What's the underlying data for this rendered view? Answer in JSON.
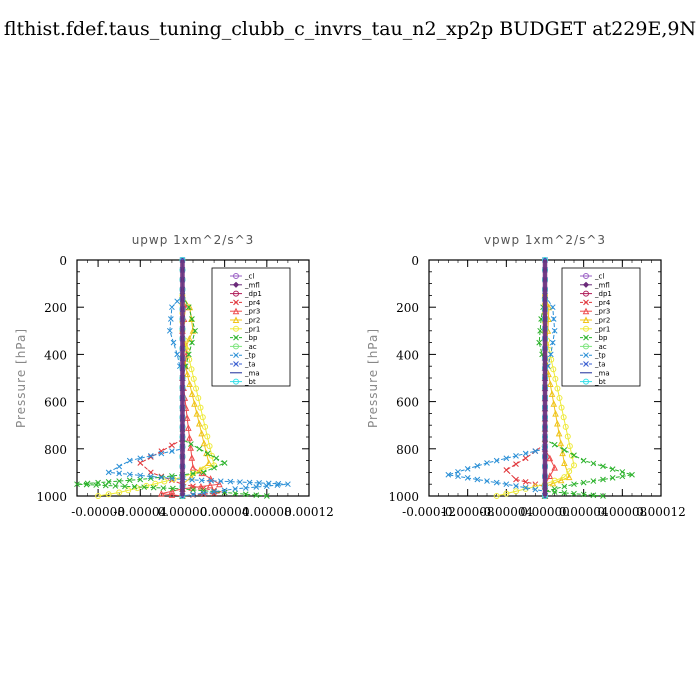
{
  "title": "flthist.fdef.taus_tuning_clubb_c_invrs_tau_n2_xp2p  BUDGET at229E,9N",
  "chart_data": [
    {
      "type": "line",
      "title": "upwp   1xm^2/s^3",
      "ylabel": "Pressure [hPa]",
      "xlabel": "",
      "xlim": [
        -0.0001,
        0.00012
      ],
      "ylim": [
        1000,
        0
      ],
      "xticks": [
        "-0.00008",
        "-0.00004",
        "0.00000",
        "0.00004",
        "0.00008",
        "0.00012"
      ],
      "xtick_values": [
        -8e-05,
        -4e-05,
        0,
        4e-05,
        8e-05,
        0.00012
      ],
      "yticks": [
        "0",
        "200",
        "400",
        "600",
        "800",
        "1000"
      ],
      "ytick_values": [
        0,
        200,
        400,
        600,
        800,
        1000
      ],
      "legend_position": "top-right",
      "series": [
        {
          "name": "_cl",
          "color": "#9a5fc4",
          "marker": "circle",
          "points": [
            [
              0,
              0
            ],
            [
              0,
              1000
            ]
          ]
        },
        {
          "name": "_mfl",
          "color": "#6b2a7a",
          "marker": "diamond",
          "points": [
            [
              0,
              0
            ],
            [
              0,
              1000
            ]
          ]
        },
        {
          "name": "_dp1",
          "color": "#b01e5a",
          "marker": "circle",
          "points": [
            [
              0,
              0
            ],
            [
              0,
              1000
            ]
          ]
        },
        {
          "name": "_pr4",
          "color": "#e0353a",
          "marker": "cross",
          "points": [
            [
              0,
              760
            ],
            [
              -2e-05,
              810
            ],
            [
              -4e-05,
              860
            ],
            [
              -3e-05,
              900
            ],
            [
              0,
              950
            ],
            [
              4e-05,
              985
            ],
            [
              0,
              1000
            ]
          ]
        },
        {
          "name": "_pr3",
          "color": "#ee4b4b",
          "marker": "triangle",
          "points": [
            [
              0,
              150
            ],
            [
              3e-06,
              200
            ],
            [
              0,
              300
            ],
            [
              4e-06,
              400
            ],
            [
              0,
              500
            ],
            [
              1e-05,
              880
            ],
            [
              3.5e-05,
              950
            ],
            [
              0,
              970
            ],
            [
              -2e-05,
              990
            ],
            [
              0,
              1000
            ]
          ]
        },
        {
          "name": "_pr2",
          "color": "#f0c419",
          "marker": "triangle",
          "points": [
            [
              0,
              150
            ],
            [
              7e-06,
              200
            ],
            [
              1e-05,
              300
            ],
            [
              0,
              400
            ],
            [
              2.5e-05,
              860
            ],
            [
              0,
              950
            ],
            [
              0,
              1000
            ]
          ]
        },
        {
          "name": "_pr1",
          "color": "#eeea3a",
          "marker": "circle",
          "points": [
            [
              0,
              150
            ],
            [
              0,
              300
            ],
            [
              3e-05,
              870
            ],
            [
              0,
              920
            ],
            [
              -6e-05,
              985
            ],
            [
              -8e-05,
              1000
            ]
          ]
        },
        {
          "name": "_bp",
          "color": "#2ab22a",
          "marker": "cross",
          "points": [
            [
              0,
              150
            ],
            [
              6e-06,
              200
            ],
            [
              1.2e-05,
              300
            ],
            [
              6e-06,
              400
            ],
            [
              0,
              500
            ],
            [
              0,
              760
            ],
            [
              4e-05,
              860
            ],
            [
              2e-05,
              900
            ],
            [
              -4e-05,
              930
            ],
            [
              -0.0001,
              950
            ],
            [
              0,
              970
            ],
            [
              8e-05,
              1000
            ]
          ]
        },
        {
          "name": "_ac",
          "color": "#7ee57e",
          "marker": "circle",
          "points": [
            [
              0,
              0
            ],
            [
              0,
              1000
            ]
          ]
        },
        {
          "name": "_tp",
          "color": "#2a8fd6",
          "marker": "cross",
          "points": [
            [
              0,
              150
            ],
            [
              -1e-05,
              200
            ],
            [
              -1.2e-05,
              300
            ],
            [
              -5e-06,
              400
            ],
            [
              0,
              500
            ],
            [
              0,
              800
            ],
            [
              -5e-05,
              850
            ],
            [
              -7e-05,
              900
            ],
            [
              0,
              930
            ],
            [
              0.0001,
              950
            ],
            [
              5e-05,
              970
            ],
            [
              0,
              1000
            ]
          ]
        },
        {
          "name": "_ta",
          "color": "#3a5fd0",
          "marker": "cross",
          "points": [
            [
              0,
              0
            ],
            [
              0,
              1000
            ]
          ]
        },
        {
          "name": "_ma",
          "color": "#1a2a9a",
          "marker": "none",
          "points": [
            [
              0,
              0
            ],
            [
              0,
              1000
            ]
          ]
        },
        {
          "name": "_bt",
          "color": "#35dfe8",
          "marker": "circle",
          "points": [
            [
              0,
              0
            ],
            [
              0,
              1000
            ]
          ]
        }
      ]
    },
    {
      "type": "line",
      "title": "vpwp   1xm^2/s^3",
      "ylabel": "Pressure [hPa]",
      "xlabel": "",
      "xlim": [
        -0.00012,
        0.00012
      ],
      "ylim": [
        1000,
        0
      ],
      "xticks": [
        "-0.00012",
        "-0.00008",
        "-0.00004",
        "0.00000",
        "0.00004",
        "0.00008",
        "0.00012"
      ],
      "xtick_values": [
        -0.00012,
        -8e-05,
        -4e-05,
        0,
        4e-05,
        8e-05,
        0.00012
      ],
      "yticks": [
        "0",
        "200",
        "400",
        "600",
        "800",
        "1000"
      ],
      "ytick_values": [
        0,
        200,
        400,
        600,
        800,
        1000
      ],
      "legend_position": "top-right",
      "series": [
        {
          "name": "_cl",
          "color": "#9a5fc4",
          "marker": "circle",
          "points": [
            [
              0,
              0
            ],
            [
              0,
              1000
            ]
          ]
        },
        {
          "name": "_mfl",
          "color": "#6b2a7a",
          "marker": "diamond",
          "points": [
            [
              0,
              0
            ],
            [
              0,
              1000
            ]
          ]
        },
        {
          "name": "_dp1",
          "color": "#b01e5a",
          "marker": "circle",
          "points": [
            [
              0,
              0
            ],
            [
              0,
              1000
            ]
          ]
        },
        {
          "name": "_pr4",
          "color": "#e0353a",
          "marker": "cross",
          "points": [
            [
              0,
              780
            ],
            [
              -2e-05,
              840
            ],
            [
              -4e-05,
              890
            ],
            [
              -3e-05,
              930
            ],
            [
              0,
              960
            ],
            [
              0,
              1000
            ]
          ]
        },
        {
          "name": "_pr3",
          "color": "#ee4b4b",
          "marker": "triangle",
          "points": [
            [
              0,
              150
            ],
            [
              0,
              500
            ],
            [
              0,
              800
            ],
            [
              1e-05,
              880
            ],
            [
              0,
              950
            ],
            [
              0,
              1000
            ]
          ]
        },
        {
          "name": "_pr2",
          "color": "#f0c419",
          "marker": "triangle",
          "points": [
            [
              0,
              150
            ],
            [
              4e-06,
              200
            ],
            [
              3e-06,
              300
            ],
            [
              0,
              400
            ],
            [
              2e-05,
              860
            ],
            [
              2.5e-05,
              920
            ],
            [
              0,
              960
            ],
            [
              0,
              1000
            ]
          ]
        },
        {
          "name": "_pr1",
          "color": "#eeea3a",
          "marker": "circle",
          "points": [
            [
              0,
              150
            ],
            [
              0,
              300
            ],
            [
              3e-05,
              870
            ],
            [
              2e-05,
              920
            ],
            [
              0,
              950
            ],
            [
              -4e-05,
              990
            ],
            [
              -5e-05,
              1000
            ]
          ]
        },
        {
          "name": "_bp",
          "color": "#2ab22a",
          "marker": "cross",
          "points": [
            [
              0,
              150
            ],
            [
              -4e-06,
              250
            ],
            [
              -6e-06,
              350
            ],
            [
              0,
              450
            ],
            [
              0,
              760
            ],
            [
              4e-05,
              850
            ],
            [
              9e-05,
              910
            ],
            [
              3e-05,
              950
            ],
            [
              0,
              980
            ],
            [
              6e-05,
              1000
            ]
          ]
        },
        {
          "name": "_ac",
          "color": "#7ee57e",
          "marker": "circle",
          "points": [
            [
              0,
              0
            ],
            [
              0,
              1000
            ]
          ]
        },
        {
          "name": "_tp",
          "color": "#2a8fd6",
          "marker": "cross",
          "points": [
            [
              0,
              150
            ],
            [
              8e-06,
              200
            ],
            [
              1e-05,
              300
            ],
            [
              6e-06,
              400
            ],
            [
              0,
              500
            ],
            [
              0,
              800
            ],
            [
              -6e-05,
              860
            ],
            [
              -0.0001,
              910
            ],
            [
              -4e-05,
              950
            ],
            [
              0,
              980
            ],
            [
              0,
              1000
            ]
          ]
        },
        {
          "name": "_ta",
          "color": "#3a5fd0",
          "marker": "cross",
          "points": [
            [
              0,
              0
            ],
            [
              0,
              1000
            ]
          ]
        },
        {
          "name": "_ma",
          "color": "#1a2a9a",
          "marker": "none",
          "points": [
            [
              0,
              0
            ],
            [
              0,
              1000
            ]
          ]
        },
        {
          "name": "_bt",
          "color": "#35dfe8",
          "marker": "circle",
          "points": [
            [
              0,
              0
            ],
            [
              0,
              1000
            ]
          ]
        }
      ]
    }
  ]
}
